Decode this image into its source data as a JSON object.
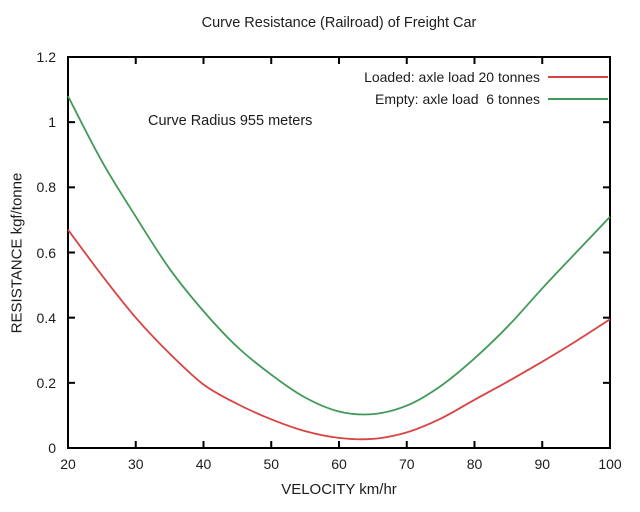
{
  "chart_data": {
    "type": "line",
    "title": "Curve Resistance (Railroad) of Freight Car",
    "xlabel": "VELOCITY km/hr",
    "ylabel": "RESISTANCE kgf/tonne",
    "annotation": "Curve Radius 955 meters",
    "xlim": [
      20,
      100
    ],
    "ylim": [
      0,
      1.2
    ],
    "x_ticks": [
      20,
      30,
      40,
      50,
      60,
      70,
      80,
      90,
      100
    ],
    "y_ticks": [
      "0",
      "0.2",
      "0.4",
      "0.6",
      "0.8",
      "1",
      "1.2"
    ],
    "grid": false,
    "legend_position": "top-right-inside",
    "background": "#ffffff",
    "axis_color": "#000000",
    "text_color": "#1c1c1c",
    "x": [
      20,
      25,
      30,
      35,
      40,
      45,
      50,
      55,
      60,
      65,
      70,
      75,
      80,
      85,
      90,
      95,
      100
    ],
    "series": [
      {
        "name": "Loaded: axle load 20 tonnes",
        "color": "#d84343",
        "values": [
          0.67,
          0.53,
          0.4,
          0.29,
          0.195,
          0.135,
          0.088,
          0.052,
          0.031,
          0.028,
          0.048,
          0.09,
          0.148,
          0.205,
          0.265,
          0.328,
          0.395
        ]
      },
      {
        "name": "Empty: axle load  6 tonnes",
        "color": "#419a58",
        "values": [
          1.08,
          0.88,
          0.71,
          0.55,
          0.42,
          0.31,
          0.225,
          0.155,
          0.112,
          0.104,
          0.13,
          0.19,
          0.275,
          0.375,
          0.49,
          0.6,
          0.71
        ]
      }
    ]
  }
}
